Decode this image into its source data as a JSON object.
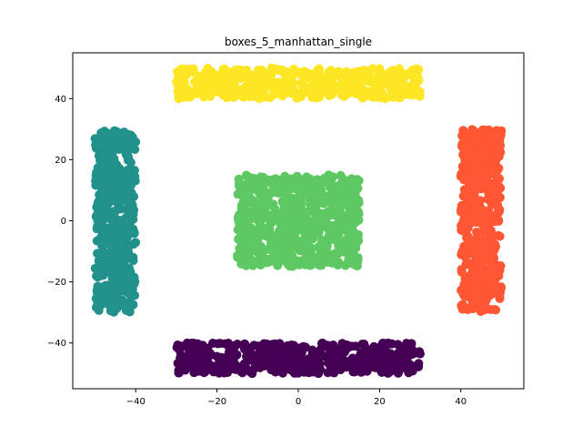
{
  "chart_data": {
    "type": "scatter",
    "title": "boxes_5_manhattan_single",
    "xlabel": "",
    "ylabel": "",
    "xlim": [
      -55.5,
      55.5
    ],
    "ylim": [
      -55,
      55
    ],
    "xticks": [
      -40,
      -20,
      0,
      20,
      40
    ],
    "yticks": [
      -40,
      -20,
      0,
      20,
      40
    ],
    "grid": false,
    "legend": "none",
    "clusters": [
      {
        "color": "#440154",
        "x_range": [
          -30,
          30
        ],
        "y_range": [
          -50,
          -40
        ]
      },
      {
        "color": "#21918c",
        "x_range": [
          -50,
          -40
        ],
        "y_range": [
          -30,
          30
        ]
      },
      {
        "color": "#5ec962",
        "x_range": [
          -15,
          15
        ],
        "y_range": [
          -15,
          15
        ]
      },
      {
        "color": "#ff5733",
        "x_range": [
          40,
          50
        ],
        "y_range": [
          -30,
          30
        ]
      },
      {
        "color": "#fde725",
        "x_range": [
          -30,
          30
        ],
        "y_range": [
          40,
          50
        ]
      }
    ]
  }
}
